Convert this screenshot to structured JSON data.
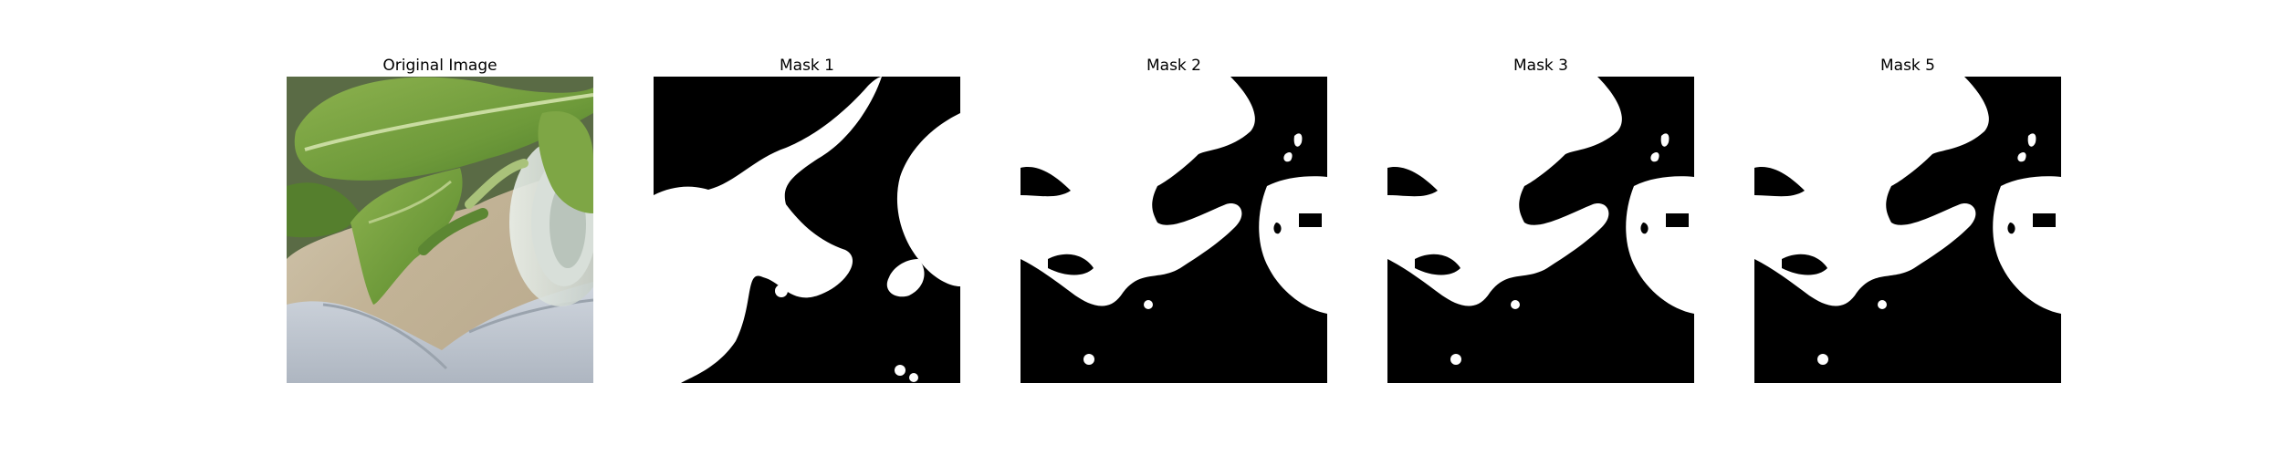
{
  "panels": [
    {
      "title": "Original Image"
    },
    {
      "title": "Mask 1"
    },
    {
      "title": "Mask 2"
    },
    {
      "title": "Mask 3"
    },
    {
      "title": "Mask 5"
    }
  ],
  "colors": {
    "background": "#ffffff",
    "mask_foreground": "#ffffff",
    "mask_background": "#000000",
    "leaf_green": "#6f9a3c",
    "leaf_dark": "#3f6d24",
    "sand": "#c9baa0",
    "cloth": "#c6cdd6"
  }
}
